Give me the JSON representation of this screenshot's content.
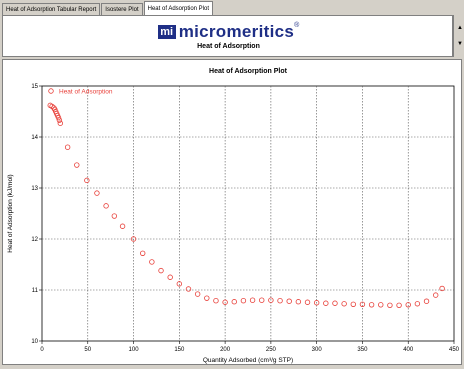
{
  "tabs": [
    {
      "label": "Heat of Adsorption Tabular Report",
      "active": false
    },
    {
      "label": "Isostere Plot",
      "active": false
    },
    {
      "label": "Heat of Adsorption Plot",
      "active": true
    }
  ],
  "header": {
    "logo_mark": "mi",
    "logo_text": "micromeritics",
    "logo_reg": "®",
    "subtitle": "Heat of Adsorption"
  },
  "colors": {
    "brand": "#1f2f86",
    "series": "#e8403a"
  },
  "chart_data": {
    "type": "scatter",
    "title": "Heat of Adsorption Plot",
    "xlabel": "Quantity Adsorbed (cm³/g STP)",
    "ylabel": "Heat of Adsorption (kJ/mol)",
    "xlim": [
      0,
      450
    ],
    "ylim": [
      10,
      15
    ],
    "xticks": [
      0,
      50,
      100,
      150,
      200,
      250,
      300,
      350,
      400,
      450
    ],
    "yticks": [
      10,
      11,
      12,
      13,
      14,
      15
    ],
    "grid": true,
    "legend": "top-left",
    "series": [
      {
        "name": "Heat of Adsorption",
        "marker": "open-circle",
        "points": [
          [
            9,
            14.62
          ],
          [
            11,
            14.6
          ],
          [
            13,
            14.57
          ],
          [
            14,
            14.54
          ],
          [
            15,
            14.5
          ],
          [
            16,
            14.46
          ],
          [
            17,
            14.42
          ],
          [
            18,
            14.38
          ],
          [
            19,
            14.33
          ],
          [
            20,
            14.27
          ],
          [
            28,
            13.8
          ],
          [
            38,
            13.45
          ],
          [
            49,
            13.15
          ],
          [
            60,
            12.9
          ],
          [
            70,
            12.65
          ],
          [
            79,
            12.45
          ],
          [
            88,
            12.25
          ],
          [
            100,
            12.0
          ],
          [
            110,
            11.72
          ],
          [
            120,
            11.55
          ],
          [
            130,
            11.38
          ],
          [
            140,
            11.25
          ],
          [
            150,
            11.12
          ],
          [
            160,
            11.02
          ],
          [
            170,
            10.92
          ],
          [
            180,
            10.84
          ],
          [
            190,
            10.79
          ],
          [
            200,
            10.76
          ],
          [
            210,
            10.77
          ],
          [
            220,
            10.79
          ],
          [
            230,
            10.8
          ],
          [
            240,
            10.8
          ],
          [
            250,
            10.8
          ],
          [
            260,
            10.79
          ],
          [
            270,
            10.78
          ],
          [
            280,
            10.77
          ],
          [
            290,
            10.76
          ],
          [
            300,
            10.75
          ],
          [
            310,
            10.74
          ],
          [
            320,
            10.74
          ],
          [
            330,
            10.73
          ],
          [
            340,
            10.72
          ],
          [
            350,
            10.72
          ],
          [
            360,
            10.71
          ],
          [
            370,
            10.71
          ],
          [
            380,
            10.7
          ],
          [
            390,
            10.7
          ],
          [
            400,
            10.71
          ],
          [
            410,
            10.73
          ],
          [
            420,
            10.78
          ],
          [
            430,
            10.9
          ],
          [
            437,
            11.03
          ]
        ]
      }
    ]
  }
}
